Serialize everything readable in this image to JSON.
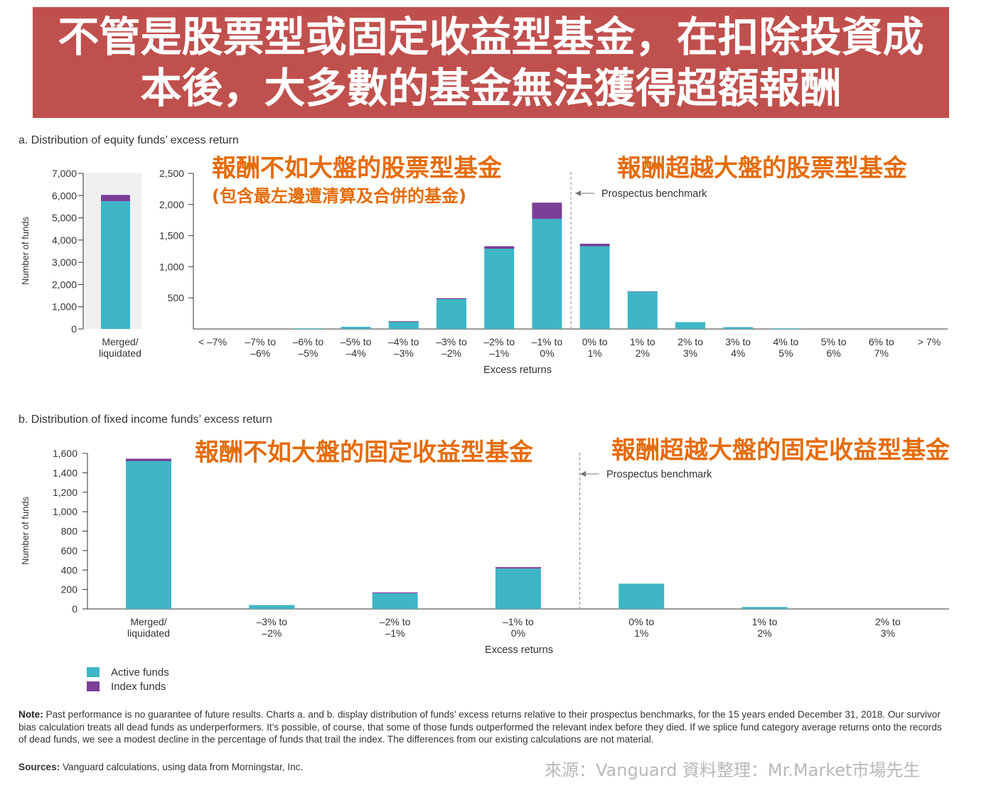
{
  "title": {
    "line1": "不管是股票型或固定收益型基金，在扣除投資成",
    "line2": "本後，大多數的基金無法獲得超額報酬"
  },
  "colors": {
    "banner": "#c0504d",
    "active": "#3fb6c5",
    "index": "#7b3f98",
    "annotation": "#e46c0a"
  },
  "chart_data": [
    {
      "type": "bar",
      "title": "a. Distribution of equity funds’ excess return",
      "ylabel": "Number of funds",
      "xlabel": "Excess returns",
      "merged": {
        "category_lines": [
          "Merged/",
          "liquidated"
        ],
        "ylim": [
          0,
          7000
        ],
        "yticks": [
          0,
          1000,
          2000,
          3000,
          4000,
          5000,
          6000,
          7000
        ],
        "ytick_labels": [
          "0",
          "1,000",
          "2,000",
          "3,000",
          "4,000",
          "5,000",
          "6,000",
          "7,000"
        ],
        "active": 5750,
        "index": 280
      },
      "ylim": [
        0,
        2500
      ],
      "yticks": [
        500,
        1000,
        1500,
        2000,
        2500
      ],
      "ytick_labels": [
        "500",
        "1,000",
        "1,500",
        "2,000",
        "2,500"
      ],
      "categories": [
        [
          "< –7%",
          ""
        ],
        [
          "–7% to",
          "–6%"
        ],
        [
          "–6% to",
          "–5%"
        ],
        [
          "–5% to",
          "–4%"
        ],
        [
          "–4% to",
          "–3%"
        ],
        [
          "–3% to",
          "–2%"
        ],
        [
          "–2% to",
          "–1%"
        ],
        [
          "–1% to",
          "0%"
        ],
        [
          "0% to",
          "1%"
        ],
        [
          "1% to",
          "2%"
        ],
        [
          "2% to",
          "3%"
        ],
        [
          "3% to",
          "4%"
        ],
        [
          "4% to",
          "5%"
        ],
        [
          "5% to",
          "6%"
        ],
        [
          "6% to",
          "7%"
        ],
        [
          "> 7%",
          ""
        ]
      ],
      "series": [
        {
          "name": "Active funds",
          "values": [
            0,
            0,
            10,
            35,
            115,
            480,
            1290,
            1770,
            1330,
            600,
            110,
            30,
            10,
            0,
            0,
            0
          ]
        },
        {
          "name": "Index funds",
          "values": [
            0,
            0,
            0,
            0,
            10,
            15,
            40,
            260,
            40,
            5,
            0,
            0,
            0,
            0,
            0,
            0
          ]
        }
      ],
      "benchmark_label": "Prospectus benchmark",
      "annotations": {
        "under": "報酬不如大盤的股票型基金",
        "under_note": "(包含最左邊遭清算及合併的基金)",
        "over": "報酬超越大盤的股票型基金"
      }
    },
    {
      "type": "bar",
      "title": "b. Distribution of fixed income funds’ excess return",
      "ylabel": "Number of funds",
      "xlabel": "Excess returns",
      "ylim": [
        0,
        1600
      ],
      "yticks": [
        0,
        200,
        400,
        600,
        800,
        1000,
        1200,
        1400,
        1600
      ],
      "ytick_labels": [
        "0",
        "200",
        "400",
        "600",
        "800",
        "1,000",
        "1,200",
        "1,400",
        "1,600"
      ],
      "categories": [
        [
          "Merged/",
          "liquidated"
        ],
        [
          "–3% to",
          "–2%"
        ],
        [
          "–2% to",
          "–1%"
        ],
        [
          "–1% to",
          "0%"
        ],
        [
          "0% to",
          "1%"
        ],
        [
          "1% to",
          "2%"
        ],
        [
          "2% to",
          "3%"
        ]
      ],
      "series": [
        {
          "name": "Active funds",
          "values": [
            1520,
            40,
            160,
            415,
            260,
            20,
            0
          ]
        },
        {
          "name": "Index funds",
          "values": [
            25,
            0,
            10,
            15,
            0,
            0,
            0
          ]
        }
      ],
      "benchmark_label": "Prospectus benchmark",
      "annotations": {
        "under": "報酬不如大盤的固定收益型基金",
        "over": "報酬超越大盤的固定收益型基金"
      }
    }
  ],
  "legend": {
    "active": "Active funds",
    "index": "Index funds"
  },
  "note": {
    "label": "Note:",
    "text": "Past performance is no guarantee of future results. Charts a. and b. display distribution of funds’ excess returns relative to their prospectus benchmarks, for the 15 years ended December 31, 2018. Our survivor bias calculation treats all dead funds as underperformers. It’s possible, of course, that some of those funds outperformed the relevant index before they died. If we splice fund category average returns onto the records of dead funds, we see a modest decline in the percentage of funds that trail the index. The differences from our existing calculations are not material."
  },
  "sources": {
    "label": "Sources:",
    "text": "Vanguard calculations, using data from Morningstar, Inc."
  },
  "credit": "來源：Vanguard  資料整理：Mr.Market市場先生"
}
